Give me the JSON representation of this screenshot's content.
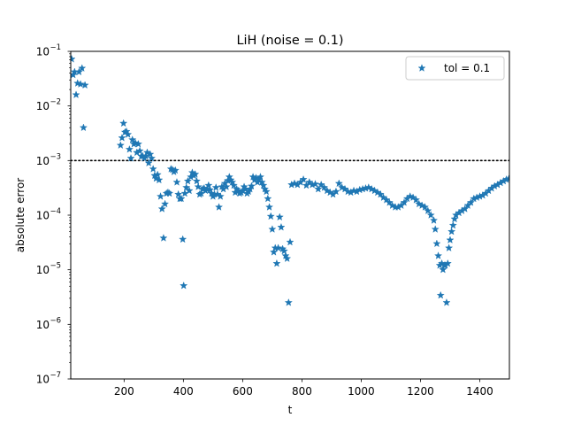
{
  "chart_data": {
    "type": "scatter",
    "title": "LiH (noise = 0.1)",
    "xlabel": "t",
    "ylabel": "absolute error",
    "xlim": [
      20,
      1500
    ],
    "ylim": [
      1e-07,
      0.1
    ],
    "yscale": "log",
    "grid": false,
    "legend_position": "top-right",
    "x_ticks": [
      200,
      400,
      600,
      800,
      1000,
      1200,
      1400
    ],
    "x_tick_labels": [
      "200",
      "400",
      "600",
      "800",
      "1000",
      "1200",
      "1400"
    ],
    "y_ticks": [
      1e-07,
      1e-06,
      1e-05,
      0.0001,
      0.001,
      0.01,
      0.1
    ],
    "y_tick_bases": [
      "10",
      "10",
      "10",
      "10",
      "10",
      "10",
      "10"
    ],
    "y_tick_exponents": [
      "−7",
      "−6",
      "−5",
      "−4",
      "−3",
      "−2",
      "−1"
    ],
    "reference_line": {
      "y": 0.001,
      "style": "dotted",
      "color": "#000000"
    },
    "series": [
      {
        "name": "tol = 0.1",
        "marker": "star",
        "color": "#1f77b4",
        "points": [
          [
            23,
            0.072
          ],
          [
            28,
            0.037
          ],
          [
            33,
            0.042
          ],
          [
            38,
            0.016
          ],
          [
            43,
            0.026
          ],
          [
            48,
            0.042
          ],
          [
            53,
            0.025
          ],
          [
            58,
            0.049
          ],
          [
            63,
            0.004
          ],
          [
            68,
            0.024
          ],
          [
            188,
            0.0019
          ],
          [
            193,
            0.0026
          ],
          [
            198,
            0.0048
          ],
          [
            203,
            0.0033
          ],
          [
            208,
            0.0034
          ],
          [
            213,
            0.003
          ],
          [
            218,
            0.0016
          ],
          [
            223,
            0.0011
          ],
          [
            228,
            0.0024
          ],
          [
            233,
            0.002
          ],
          [
            238,
            0.0021
          ],
          [
            243,
            0.0014
          ],
          [
            248,
            0.002
          ],
          [
            253,
            0.0015
          ],
          [
            258,
            0.0012
          ],
          [
            263,
            0.0012
          ],
          [
            268,
            0.0011
          ],
          [
            273,
            0.0012
          ],
          [
            278,
            0.0014
          ],
          [
            283,
            0.0009
          ],
          [
            288,
            0.0013
          ],
          [
            293,
            0.0011
          ],
          [
            298,
            0.0007
          ],
          [
            303,
            0.00053
          ],
          [
            308,
            0.00047
          ],
          [
            313,
            0.00055
          ],
          [
            318,
            0.00044
          ],
          [
            323,
            0.00022
          ],
          [
            328,
            0.00013
          ],
          [
            333,
            3.8e-05
          ],
          [
            338,
            0.00016
          ],
          [
            343,
            0.00025
          ],
          [
            348,
            0.00026
          ],
          [
            353,
            0.00025
          ],
          [
            358,
            0.0007
          ],
          [
            363,
            0.00068
          ],
          [
            368,
            0.00062
          ],
          [
            373,
            0.00066
          ],
          [
            378,
            0.0004
          ],
          [
            383,
            0.00024
          ],
          [
            388,
            0.0002
          ],
          [
            393,
            0.0002
          ],
          [
            398,
            3.6e-05
          ],
          [
            401,
            5.1e-06
          ],
          [
            405,
            0.00025
          ],
          [
            410,
            0.00032
          ],
          [
            415,
            0.00042
          ],
          [
            420,
            0.00028
          ],
          [
            425,
            0.0005
          ],
          [
            430,
            0.0006
          ],
          [
            435,
            0.00053
          ],
          [
            440,
            0.00056
          ],
          [
            445,
            0.00042
          ],
          [
            450,
            0.00033
          ],
          [
            455,
            0.00024
          ],
          [
            460,
            0.00025
          ],
          [
            465,
            0.0003
          ],
          [
            470,
            0.00031
          ],
          [
            475,
            0.00028
          ],
          [
            480,
            0.0003
          ],
          [
            485,
            0.00035
          ],
          [
            490,
            0.00029
          ],
          [
            495,
            0.00025
          ],
          [
            500,
            0.00022
          ],
          [
            505,
            0.00024
          ],
          [
            510,
            0.00032
          ],
          [
            515,
            0.00024
          ],
          [
            520,
            0.00014
          ],
          [
            525,
            0.00022
          ],
          [
            530,
            0.00033
          ],
          [
            535,
            0.0003
          ],
          [
            540,
            0.00038
          ],
          [
            545,
            0.00033
          ],
          [
            550,
            0.00043
          ],
          [
            555,
            0.0005
          ],
          [
            560,
            0.00044
          ],
          [
            565,
            0.0004
          ],
          [
            570,
            0.00035
          ],
          [
            575,
            0.00026
          ],
          [
            580,
            0.0003
          ],
          [
            585,
            0.00028
          ],
          [
            590,
            0.00025
          ],
          [
            595,
            0.00026
          ],
          [
            600,
            0.00028
          ],
          [
            605,
            0.00033
          ],
          [
            610,
            0.0003
          ],
          [
            615,
            0.00025
          ],
          [
            620,
            0.00027
          ],
          [
            625,
            0.0003
          ],
          [
            630,
            0.00034
          ],
          [
            635,
            0.0005
          ],
          [
            640,
            0.00044
          ],
          [
            645,
            0.00048
          ],
          [
            650,
            0.0004
          ],
          [
            655,
            0.00045
          ],
          [
            660,
            0.0005
          ],
          [
            665,
            0.0004
          ],
          [
            670,
            0.00035
          ],
          [
            675,
            0.0003
          ],
          [
            680,
            0.00027
          ],
          [
            685,
            0.0002
          ],
          [
            690,
            0.00014
          ],
          [
            695,
            9.5e-05
          ],
          [
            700,
            5.5e-05
          ],
          [
            705,
            2.1e-05
          ],
          [
            710,
            2.5e-05
          ],
          [
            715,
            1.3e-05
          ],
          [
            720,
            2.5e-05
          ],
          [
            725,
            9.2e-05
          ],
          [
            730,
            6e-05
          ],
          [
            735,
            2.4e-05
          ],
          [
            740,
            2.2e-05
          ],
          [
            745,
            1.8e-05
          ],
          [
            750,
            1.6e-05
          ],
          [
            755,
            2.5e-06
          ],
          [
            760,
            3.2e-05
          ],
          [
            765,
            0.00036
          ],
          [
            775,
            0.00038
          ],
          [
            785,
            0.00036
          ],
          [
            795,
            0.0004
          ],
          [
            805,
            0.00045
          ],
          [
            815,
            0.00035
          ],
          [
            825,
            0.0004
          ],
          [
            835,
            0.00036
          ],
          [
            845,
            0.00037
          ],
          [
            855,
            0.0003
          ],
          [
            865,
            0.00036
          ],
          [
            875,
            0.00032
          ],
          [
            885,
            0.00028
          ],
          [
            895,
            0.00026
          ],
          [
            905,
            0.00024
          ],
          [
            915,
            0.00027
          ],
          [
            925,
            0.00038
          ],
          [
            935,
            0.00032
          ],
          [
            945,
            0.0003
          ],
          [
            955,
            0.00027
          ],
          [
            965,
            0.00026
          ],
          [
            975,
            0.00028
          ],
          [
            985,
            0.00027
          ],
          [
            995,
            0.00029
          ],
          [
            1005,
            0.0003
          ],
          [
            1015,
            0.00031
          ],
          [
            1025,
            0.00032
          ],
          [
            1035,
            0.0003
          ],
          [
            1045,
            0.00028
          ],
          [
            1055,
            0.00026
          ],
          [
            1065,
            0.00024
          ],
          [
            1075,
            0.00021
          ],
          [
            1085,
            0.00019
          ],
          [
            1095,
            0.00017
          ],
          [
            1105,
            0.00015
          ],
          [
            1115,
            0.00014
          ],
          [
            1125,
            0.00014
          ],
          [
            1135,
            0.00015
          ],
          [
            1145,
            0.00017
          ],
          [
            1155,
            0.0002
          ],
          [
            1165,
            0.00022
          ],
          [
            1175,
            0.00021
          ],
          [
            1185,
            0.00019
          ],
          [
            1195,
            0.00016
          ],
          [
            1205,
            0.00015
          ],
          [
            1215,
            0.00014
          ],
          [
            1225,
            0.00012
          ],
          [
            1235,
            0.0001
          ],
          [
            1245,
            8e-05
          ],
          [
            1250,
            5.5e-05
          ],
          [
            1255,
            3e-05
          ],
          [
            1260,
            1.8e-05
          ],
          [
            1265,
            1.2e-05
          ],
          [
            1268,
            3.4e-06
          ],
          [
            1272,
            1.3e-05
          ],
          [
            1276,
            1e-05
          ],
          [
            1280,
            1.2e-05
          ],
          [
            1284,
            1.2e-05
          ],
          [
            1288,
            2.5e-06
          ],
          [
            1292,
            1.3e-05
          ],
          [
            1296,
            2.5e-05
          ],
          [
            1300,
            3.5e-05
          ],
          [
            1305,
            5e-05
          ],
          [
            1310,
            6.5e-05
          ],
          [
            1315,
            8.5e-05
          ],
          [
            1320,
            0.0001
          ],
          [
            1330,
            0.00011
          ],
          [
            1340,
            0.00012
          ],
          [
            1350,
            0.00013
          ],
          [
            1360,
            0.00015
          ],
          [
            1370,
            0.00017
          ],
          [
            1380,
            0.0002
          ],
          [
            1390,
            0.00021
          ],
          [
            1400,
            0.00022
          ],
          [
            1410,
            0.00023
          ],
          [
            1420,
            0.00025
          ],
          [
            1430,
            0.00028
          ],
          [
            1440,
            0.00031
          ],
          [
            1450,
            0.00034
          ],
          [
            1460,
            0.00036
          ],
          [
            1470,
            0.00039
          ],
          [
            1480,
            0.00042
          ],
          [
            1490,
            0.00045
          ],
          [
            1498,
            0.00046
          ]
        ]
      }
    ]
  }
}
